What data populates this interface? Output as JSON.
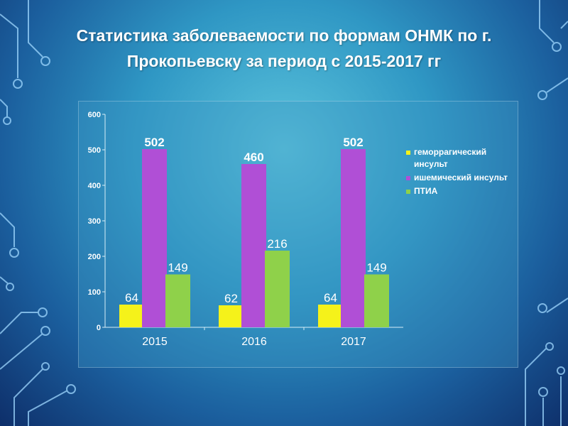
{
  "title": "Статистика заболеваемости по формам ОНМК по г. Прокопьевску за период  с 2015-2017 гг",
  "chart_data": {
    "type": "bar",
    "categories": [
      "2015",
      "2016",
      "2017"
    ],
    "series": [
      {
        "name": "геморрагический инсульт",
        "color": "#f5f21a",
        "values": [
          64,
          62,
          64
        ]
      },
      {
        "name": "ишемический инсульт",
        "color": "#b04fd6",
        "values": [
          502,
          460,
          502
        ]
      },
      {
        "name": "ПТИА",
        "color": "#8fd14a",
        "values": [
          149,
          216,
          149
        ]
      }
    ],
    "ylim": [
      0,
      600
    ],
    "yticks": [
      "0",
      "100",
      "200",
      "300",
      "400",
      "500",
      "600"
    ],
    "grid": false,
    "legend": "right"
  }
}
